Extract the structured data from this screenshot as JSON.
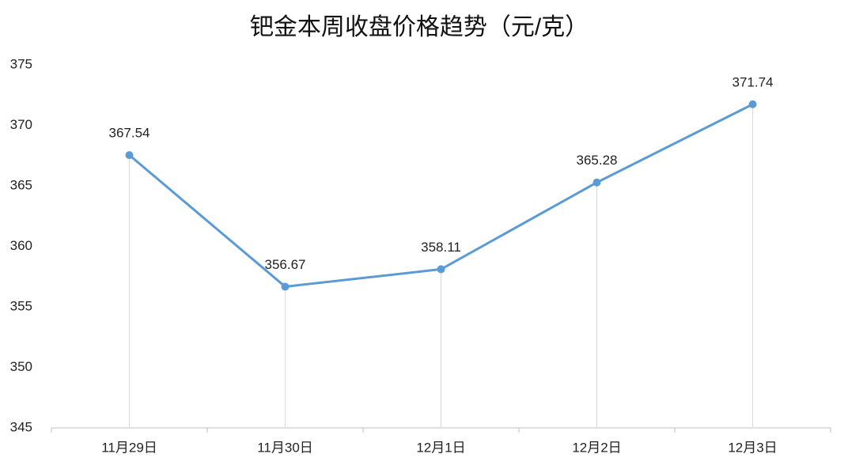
{
  "chart_data": {
    "type": "line",
    "title": "钯金本周收盘价格趋势（元/克）",
    "categories": [
      "11月29日",
      "11月30日",
      "12月1日",
      "12月2日",
      "12月3日"
    ],
    "values": [
      367.54,
      356.67,
      358.11,
      365.28,
      371.74
    ],
    "color": "#5b9bd5",
    "ylim": [
      345,
      375
    ],
    "yticks": [
      345,
      350,
      355,
      360,
      365,
      370,
      375
    ],
    "grid": false,
    "drop_lines": true
  }
}
